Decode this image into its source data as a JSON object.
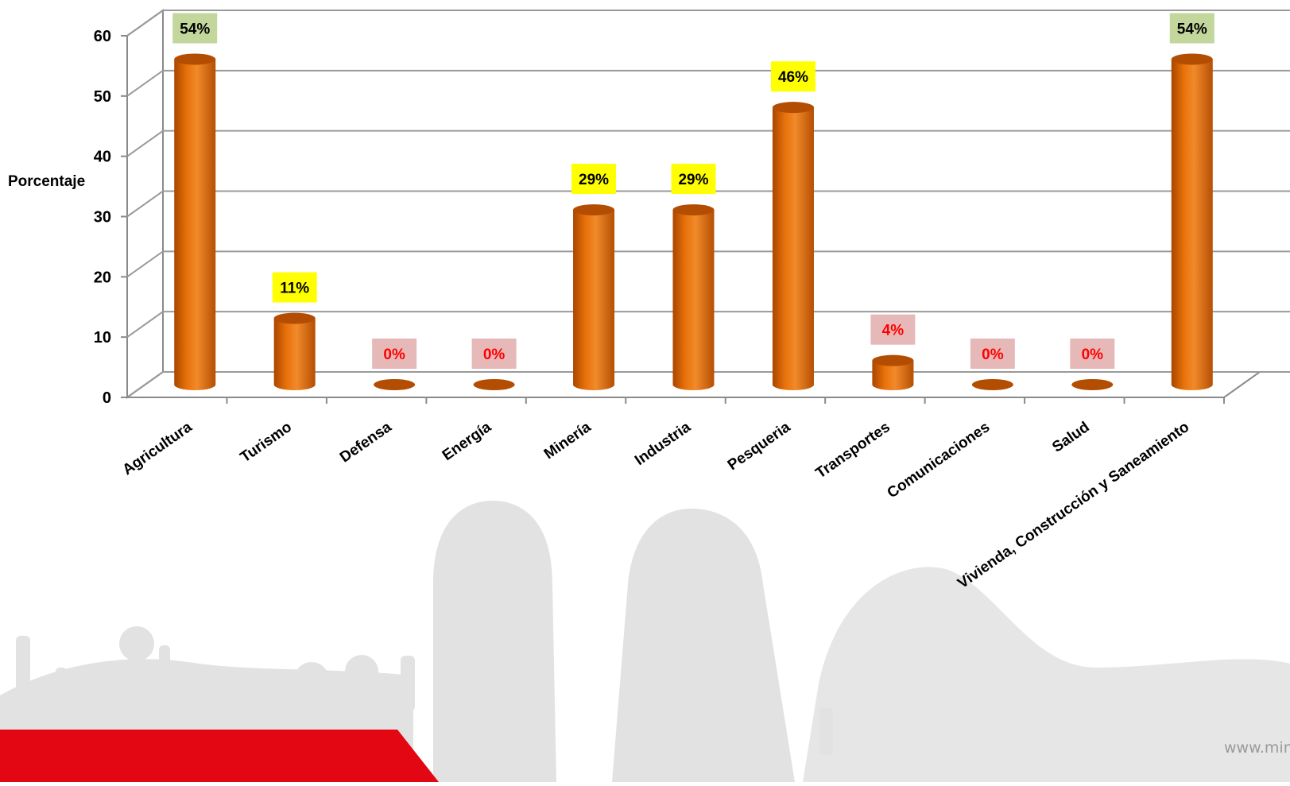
{
  "chart_data": {
    "type": "bar",
    "ylabel": "Porcentaje",
    "xlabel": "",
    "title": "",
    "ylim": [
      0,
      60
    ],
    "yticks": [
      0,
      10,
      20,
      30,
      40,
      50,
      60
    ],
    "grid": true,
    "categories": [
      "Agricultura",
      "Turismo",
      "Defensa",
      "Energía",
      "Minería",
      "Industria",
      "Pesqueria",
      "Transportes",
      "Comunicaciones",
      "Salud",
      "Vivienda, Construcción y Saneamiento"
    ],
    "values": [
      54,
      11,
      0,
      0,
      29,
      29,
      46,
      4,
      0,
      0,
      54
    ],
    "data_labels": [
      "54%",
      "11%",
      "0%",
      "0%",
      "29%",
      "29%",
      "46%",
      "4%",
      "0%",
      "0%",
      "54%"
    ],
    "label_styles": [
      "green",
      "yellow",
      "pink",
      "pink",
      "yellow",
      "yellow",
      "yellow",
      "pink",
      "pink",
      "pink",
      "green"
    ]
  },
  "colors": {
    "bar": "#e8710a",
    "bar_dark": "#b34d02",
    "bar_light": "#f79a3c",
    "label_green_bg": "#c3d69b",
    "label_yellow_bg": "#ffff00",
    "label_pink_bg": "#e6b9b8",
    "label_red_text": "#ff0000",
    "label_black_text": "#000000",
    "footer_red": "#e30613",
    "landscape": "#dcdcdc"
  },
  "footer": {
    "url": "www.mina"
  }
}
